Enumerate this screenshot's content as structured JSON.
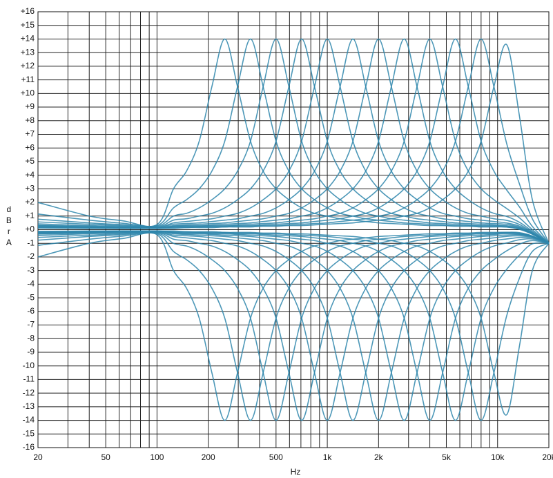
{
  "chart_data": {
    "type": "line",
    "xscale": "log",
    "grid": true,
    "color": "#2e86ab",
    "xlabel": "Hz",
    "ylabel": "dBrA",
    "xlim": [
      20,
      20000
    ],
    "ylim": [
      -16,
      16
    ],
    "xticks": [
      20,
      50,
      100,
      200,
      500,
      {
        "value": 1000,
        "label": "1k"
      },
      {
        "value": 2000,
        "label": "2k"
      },
      {
        "value": 5000,
        "label": "5k"
      },
      {
        "value": 10000,
        "label": "10k"
      },
      {
        "value": 20000,
        "label": "20k"
      }
    ],
    "xminor": [
      30,
      40,
      60,
      70,
      80,
      90,
      300,
      400,
      600,
      700,
      800,
      900,
      3000,
      4000,
      6000,
      7000,
      8000,
      9000
    ],
    "yticks": [
      {
        "value": 16,
        "label": "+16"
      },
      {
        "value": 15,
        "label": "+15"
      },
      {
        "value": 14,
        "label": "+14"
      },
      {
        "value": 13,
        "label": "+13"
      },
      {
        "value": 12,
        "label": "+12"
      },
      {
        "value": 11,
        "label": "+11"
      },
      {
        "value": 10,
        "label": "+10"
      },
      {
        "value": 9,
        "label": "+9"
      },
      {
        "value": 8,
        "label": "+8"
      },
      {
        "value": 7,
        "label": "+7"
      },
      {
        "value": 6,
        "label": "+6"
      },
      {
        "value": 5,
        "label": "+5"
      },
      {
        "value": 4,
        "label": "+4"
      },
      {
        "value": 3,
        "label": "+3"
      },
      {
        "value": 2,
        "label": "+2"
      },
      {
        "value": 1,
        "label": "+1"
      },
      {
        "value": 0,
        "label": "+0"
      },
      -1,
      -2,
      -3,
      -4,
      -5,
      -6,
      -7,
      -8,
      -9,
      -10,
      -11,
      -12,
      -13,
      -14,
      -15,
      -16
    ],
    "x": [
      20,
      40,
      63,
      100,
      125,
      149,
      177,
      210,
      250,
      297,
      354,
      420,
      500,
      595,
      707,
      841,
      1000,
      1189,
      1414,
      1682,
      2000,
      2378,
      2828,
      3364,
      4000,
      4757,
      5657,
      6727,
      8000,
      9514,
      11314,
      13454,
      16000,
      20000
    ],
    "series": [
      {
        "values": [
          2.0,
          1.0,
          0.65,
          0.37,
          3,
          4.3,
          6.5,
          10.5,
          14,
          10.5,
          6.5,
          4.3,
          3,
          2.2,
          1.6,
          1.2,
          1,
          0.8,
          0.7,
          0.6,
          0.5,
          0.45,
          0.4,
          0.35,
          0.3,
          0.3,
          0.25,
          0.25,
          0.2,
          0.2,
          0.19,
          0.02,
          -0.34,
          -1
        ]
      },
      {
        "values": [
          1.15,
          0.7,
          0.47,
          0.3,
          1.6,
          2.2,
          3,
          4.3,
          6.5,
          10.5,
          14,
          10.5,
          6.5,
          4.3,
          3,
          2.2,
          1.6,
          1.2,
          1,
          0.8,
          0.7,
          0.6,
          0.5,
          0.45,
          0.4,
          0.35,
          0.3,
          0.3,
          0.25,
          0.25,
          0.19,
          0.06,
          -0.32,
          -1
        ]
      },
      {
        "values": [
          0.77,
          0.5,
          0.37,
          0.25,
          1,
          1.2,
          1.6,
          2.2,
          3,
          4.3,
          6.5,
          10.5,
          14,
          10.5,
          6.5,
          4.3,
          3,
          2.2,
          1.6,
          1.2,
          1,
          0.8,
          0.7,
          0.6,
          0.5,
          0.45,
          0.4,
          0.35,
          0.3,
          0.3,
          0.24,
          0.1,
          -0.32,
          -1
        ]
      },
      {
        "values": [
          0.57,
          0.4,
          0.3,
          0.2,
          0.7,
          0.8,
          1,
          1.2,
          1.6,
          2.2,
          3,
          4.3,
          6.5,
          10.5,
          14,
          10.5,
          6.5,
          4.3,
          3,
          2.2,
          1.6,
          1.2,
          1,
          0.8,
          0.7,
          0.6,
          0.5,
          0.45,
          0.4,
          0.35,
          0.29,
          0.14,
          -0.3,
          -1
        ]
      },
      {
        "values": [
          0.43,
          0.3,
          0.25,
          0.17,
          0.5,
          0.6,
          0.7,
          0.8,
          1,
          1.2,
          1.6,
          2.2,
          3,
          4.3,
          6.5,
          10.5,
          14,
          10.5,
          6.5,
          4.3,
          3,
          2.2,
          1.6,
          1.2,
          1,
          0.8,
          0.7,
          0.6,
          0.5,
          0.45,
          0.39,
          0.18,
          -0.28,
          -1
        ]
      },
      {
        "values": [
          0.33,
          0.25,
          0.2,
          0.15,
          0.4,
          0.45,
          0.5,
          0.6,
          0.7,
          0.8,
          1,
          1.2,
          1.6,
          2.2,
          3,
          4.3,
          6.5,
          10.5,
          14,
          10.5,
          6.5,
          4.3,
          3,
          2.2,
          1.6,
          1.2,
          1,
          0.8,
          0.7,
          0.6,
          0.49,
          0.26,
          -0.24,
          -1
        ]
      },
      {
        "values": [
          0.3,
          0.2,
          0.17,
          0.12,
          0.3,
          0.35,
          0.4,
          0.45,
          0.5,
          0.6,
          0.7,
          0.8,
          1,
          1.2,
          1.6,
          2.2,
          3,
          4.3,
          6.5,
          10.5,
          14,
          10.5,
          6.5,
          4.3,
          3,
          2.2,
          1.6,
          1.2,
          1,
          0.8,
          0.68,
          0.38,
          -0.2,
          -1
        ]
      },
      {
        "values": [
          0.25,
          0.2,
          0.15,
          0.1,
          0.25,
          0.3,
          0.3,
          0.35,
          0.4,
          0.45,
          0.5,
          0.6,
          0.7,
          0.8,
          1,
          1.2,
          1.6,
          2.2,
          3,
          4.3,
          6.5,
          10.5,
          14,
          10.5,
          6.5,
          4.3,
          3,
          2.2,
          1.6,
          1.2,
          0.97,
          0.54,
          -0.12,
          -1
        ]
      },
      {
        "values": [
          0.2,
          0.15,
          0.12,
          0.1,
          0.2,
          0.25,
          0.25,
          0.3,
          0.3,
          0.35,
          0.4,
          0.45,
          0.5,
          0.6,
          0.7,
          0.8,
          1,
          1.2,
          1.6,
          2.2,
          3,
          4.3,
          6.5,
          10.5,
          14,
          10.5,
          6.5,
          4.3,
          3,
          2.2,
          1.55,
          0.86,
          0,
          -1
        ]
      },
      {
        "values": [
          0.2,
          0.15,
          0.1,
          0.1,
          0.2,
          0.2,
          0.2,
          0.25,
          0.25,
          0.3,
          0.3,
          0.35,
          0.4,
          0.45,
          0.5,
          0.6,
          0.7,
          0.8,
          1,
          1.2,
          1.6,
          2.2,
          3,
          4.3,
          6.5,
          10.5,
          14,
          10.5,
          6.5,
          4.3,
          2.91,
          1.66,
          0.24,
          -1
        ]
      },
      {
        "values": [
          0.15,
          0.12,
          0.1,
          0.1,
          0.15,
          0.15,
          0.2,
          0.2,
          0.2,
          0.25,
          0.25,
          0.3,
          0.3,
          0.35,
          0.4,
          0.45,
          0.5,
          0.6,
          0.7,
          0.8,
          1,
          1.2,
          1.6,
          2.2,
          3,
          4.3,
          6.5,
          10.5,
          14,
          10.5,
          6.31,
          3.34,
          0.8,
          -1
        ]
      },
      {
        "values": [
          0.12,
          0.1,
          0.1,
          0.1,
          0.1,
          0.15,
          0.15,
          0.15,
          0.2,
          0.2,
          0.2,
          0.25,
          0.25,
          0.3,
          0.3,
          0.35,
          0.4,
          0.45,
          0.5,
          0.6,
          0.7,
          0.8,
          1,
          1.2,
          1.6,
          2.2,
          3,
          4.3,
          6.5,
          10.5,
          13.58,
          8.3,
          2.2,
          -1
        ]
      },
      {
        "values": [
          -2.0,
          -1.0,
          -0.65,
          -0.37,
          -3,
          -4.3,
          -6.5,
          -10.5,
          -14,
          -10.5,
          -6.5,
          -4.3,
          -3,
          -2.2,
          -1.6,
          -1.2,
          -1,
          -0.8,
          -0.7,
          -0.6,
          -0.5,
          -0.45,
          -0.4,
          -0.35,
          -0.3,
          -0.3,
          -0.25,
          -0.25,
          -0.2,
          -0.2,
          -0.19,
          -0.22,
          -0.46,
          -1
        ]
      },
      {
        "values": [
          -1.15,
          -0.7,
          -0.47,
          -0.3,
          -1.6,
          -2.2,
          -3,
          -4.3,
          -6.5,
          -10.5,
          -14,
          -10.5,
          -6.5,
          -4.3,
          -3,
          -2.2,
          -1.6,
          -1.2,
          -1,
          -0.8,
          -0.7,
          -0.6,
          -0.5,
          -0.45,
          -0.4,
          -0.35,
          -0.3,
          -0.3,
          -0.25,
          -0.25,
          -0.19,
          -0.26,
          -0.48,
          -1
        ]
      },
      {
        "values": [
          -0.77,
          -0.5,
          -0.37,
          -0.25,
          -1,
          -1.2,
          -1.6,
          -2.2,
          -3,
          -4.3,
          -6.5,
          -10.5,
          -14,
          -10.5,
          -6.5,
          -4.3,
          -3,
          -2.2,
          -1.6,
          -1.2,
          -1,
          -0.8,
          -0.7,
          -0.6,
          -0.5,
          -0.45,
          -0.4,
          -0.35,
          -0.3,
          -0.3,
          -0.24,
          -0.3,
          -0.48,
          -1
        ]
      },
      {
        "values": [
          -0.57,
          -0.4,
          -0.3,
          -0.2,
          -0.7,
          -0.8,
          -1,
          -1.2,
          -1.6,
          -2.2,
          -3,
          -4.3,
          -6.5,
          -10.5,
          -14,
          -10.5,
          -6.5,
          -4.3,
          -3,
          -2.2,
          -1.6,
          -1.2,
          -1,
          -0.8,
          -0.7,
          -0.6,
          -0.5,
          -0.45,
          -0.4,
          -0.35,
          -0.29,
          -0.34,
          -0.5,
          -1
        ]
      },
      {
        "values": [
          -0.43,
          -0.3,
          -0.25,
          -0.17,
          -0.5,
          -0.6,
          -0.7,
          -0.8,
          -1,
          -1.2,
          -1.6,
          -2.2,
          -3,
          -4.3,
          -6.5,
          -10.5,
          -14,
          -10.5,
          -6.5,
          -4.3,
          -3,
          -2.2,
          -1.6,
          -1.2,
          -1,
          -0.8,
          -0.7,
          -0.6,
          -0.5,
          -0.45,
          -0.39,
          -0.38,
          -0.52,
          -1
        ]
      },
      {
        "values": [
          -0.33,
          -0.25,
          -0.2,
          -0.15,
          -0.4,
          -0.45,
          -0.5,
          -0.6,
          -0.7,
          -0.8,
          -1,
          -1.2,
          -1.6,
          -2.2,
          -3,
          -4.3,
          -6.5,
          -10.5,
          -14,
          -10.5,
          -6.5,
          -4.3,
          -3,
          -2.2,
          -1.6,
          -1.2,
          -1,
          -0.8,
          -0.7,
          -0.6,
          -0.49,
          -0.46,
          -0.56,
          -1
        ]
      },
      {
        "values": [
          -0.3,
          -0.2,
          -0.17,
          -0.12,
          -0.3,
          -0.35,
          -0.4,
          -0.45,
          -0.5,
          -0.6,
          -0.7,
          -0.8,
          -1,
          -1.2,
          -1.6,
          -2.2,
          -3,
          -4.3,
          -6.5,
          -10.5,
          -14,
          -10.5,
          -6.5,
          -4.3,
          -3,
          -2.2,
          -1.6,
          -1.2,
          -1,
          -0.8,
          -0.68,
          -0.58,
          -0.6,
          -1
        ]
      },
      {
        "values": [
          -0.25,
          -0.2,
          -0.15,
          -0.1,
          -0.25,
          -0.3,
          -0.3,
          -0.35,
          -0.4,
          -0.45,
          -0.5,
          -0.6,
          -0.7,
          -0.8,
          -1,
          -1.2,
          -1.6,
          -2.2,
          -3,
          -4.3,
          -6.5,
          -10.5,
          -14,
          -10.5,
          -6.5,
          -4.3,
          -3,
          -2.2,
          -1.6,
          -1.2,
          -0.97,
          -0.74,
          -0.68,
          -1
        ]
      },
      {
        "values": [
          -0.2,
          -0.15,
          -0.12,
          -0.1,
          -0.2,
          -0.25,
          -0.25,
          -0.3,
          -0.3,
          -0.35,
          -0.4,
          -0.45,
          -0.5,
          -0.6,
          -0.7,
          -0.8,
          -1,
          -1.2,
          -1.6,
          -2.2,
          -3,
          -4.3,
          -6.5,
          -10.5,
          -14,
          -10.5,
          -6.5,
          -4.3,
          -3,
          -2.2,
          -1.55,
          -1.06,
          -0.8,
          -1
        ]
      },
      {
        "values": [
          -0.2,
          -0.15,
          -0.1,
          -0.1,
          -0.2,
          -0.2,
          -0.2,
          -0.25,
          -0.25,
          -0.3,
          -0.3,
          -0.35,
          -0.4,
          -0.45,
          -0.5,
          -0.6,
          -0.7,
          -0.8,
          -1,
          -1.2,
          -1.6,
          -2.2,
          -3,
          -4.3,
          -6.5,
          -10.5,
          -14,
          -10.5,
          -6.5,
          -4.3,
          -2.91,
          -1.86,
          -1.04,
          -1
        ]
      },
      {
        "values": [
          -0.15,
          -0.12,
          -0.1,
          -0.1,
          -0.15,
          -0.15,
          -0.2,
          -0.2,
          -0.2,
          -0.25,
          -0.25,
          -0.3,
          -0.3,
          -0.35,
          -0.4,
          -0.45,
          -0.5,
          -0.6,
          -0.7,
          -0.8,
          -1,
          -1.2,
          -1.6,
          -2.2,
          -3,
          -4.3,
          -6.5,
          -10.5,
          -14,
          -10.5,
          -6.31,
          -3.54,
          -1.6,
          -1
        ]
      },
      {
        "values": [
          -0.12,
          -0.1,
          -0.1,
          -0.1,
          -0.1,
          -0.15,
          -0.15,
          -0.15,
          -0.2,
          -0.2,
          -0.2,
          -0.25,
          -0.25,
          -0.3,
          -0.3,
          -0.35,
          -0.4,
          -0.45,
          -0.5,
          -0.6,
          -0.7,
          -0.8,
          -1,
          -1.2,
          -1.6,
          -2.2,
          -3,
          -4.3,
          -6.5,
          -10.5,
          -13.58,
          -8.5,
          -3,
          -1
        ]
      }
    ]
  }
}
